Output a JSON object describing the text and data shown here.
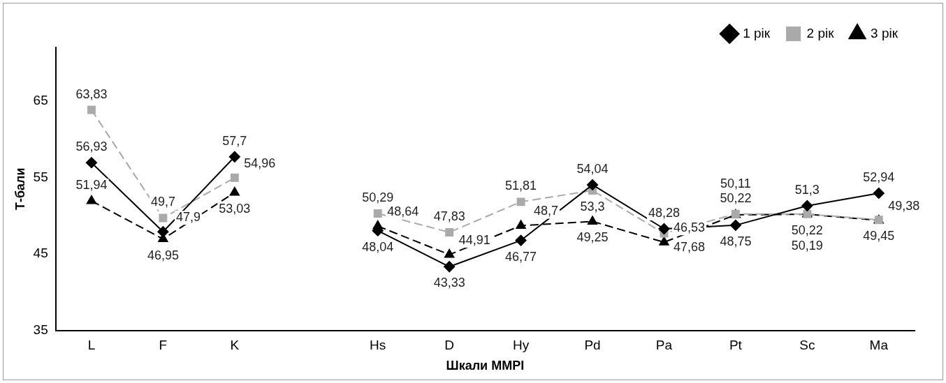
{
  "chart_data": {
    "type": "line",
    "xlabel": "Шкали MMPI",
    "ylabel": "Т-бали",
    "categories": [
      "L",
      "F",
      "K",
      null,
      "Hs",
      "D",
      "Hy",
      "Pd",
      "Pa",
      "Pt",
      "Sc",
      "Ma"
    ],
    "series": [
      {
        "name": "1 рік",
        "color": "#000000",
        "marker": "diamond",
        "line_style": "solid",
        "values": [
          56.93,
          47.9,
          57.7,
          null,
          48.04,
          43.33,
          46.77,
          54.04,
          48.28,
          48.75,
          51.3,
          52.94
        ],
        "value_labels": [
          "56,93",
          "47,9",
          "57,7",
          null,
          "48,04",
          "43,33",
          "46,77",
          "54,04",
          "48,28",
          "48,75",
          "51,3",
          "52,94"
        ]
      },
      {
        "name": "2 рік",
        "color": "#aaaaaa",
        "marker": "square",
        "line_style": "dashed",
        "values": [
          63.83,
          49.7,
          54.96,
          null,
          50.29,
          47.83,
          51.81,
          53.3,
          47.68,
          50.22,
          50.22,
          49.45
        ],
        "value_labels": [
          "63,83",
          "49,7",
          "54,96",
          null,
          "50,29",
          "47,83",
          "51,81",
          "53,3",
          "47,68",
          "50,22",
          "50,22",
          "49,45"
        ]
      },
      {
        "name": "3 рік",
        "color": "#000000",
        "marker": "triangle",
        "line_style": "dashed",
        "values": [
          51.94,
          46.95,
          53.03,
          null,
          48.64,
          44.91,
          48.7,
          49.25,
          46.53,
          50.11,
          50.19,
          49.38
        ],
        "value_labels": [
          "51,94",
          "46,95",
          "53,03",
          null,
          "48,64",
          "44,91",
          "48,7",
          "49,25",
          "46,53",
          "50,11",
          "50,19",
          "49,38"
        ]
      }
    ],
    "ylim": [
      35,
      72
    ],
    "yticks": [
      35,
      45,
      55,
      65
    ],
    "grid": false,
    "legend": "top right"
  }
}
